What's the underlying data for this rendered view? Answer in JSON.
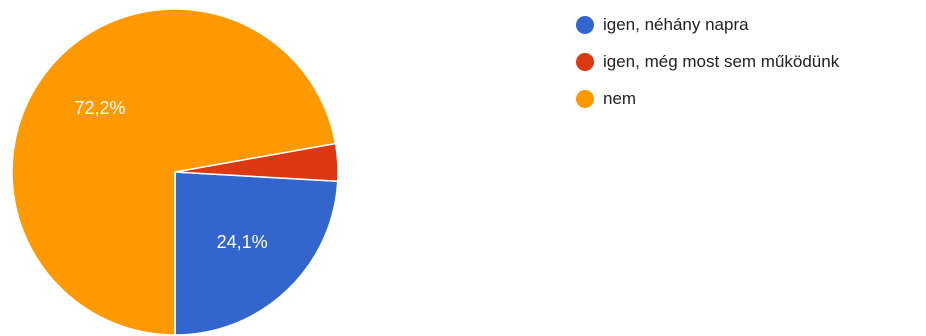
{
  "chart_data": {
    "type": "pie",
    "slices": [
      {
        "label": "igen, néhány napra",
        "value": 24.1,
        "display": "24,1%",
        "color": "#3366cc"
      },
      {
        "label": "igen, még most sem működünk",
        "value": 3.7,
        "display": "",
        "color": "#dc3912"
      },
      {
        "label": "nem",
        "value": 72.2,
        "display": "72,2%",
        "color": "#ff9900"
      }
    ],
    "start_angle_deg": 90,
    "direction": "clockwise",
    "legend_position": "top-right"
  }
}
